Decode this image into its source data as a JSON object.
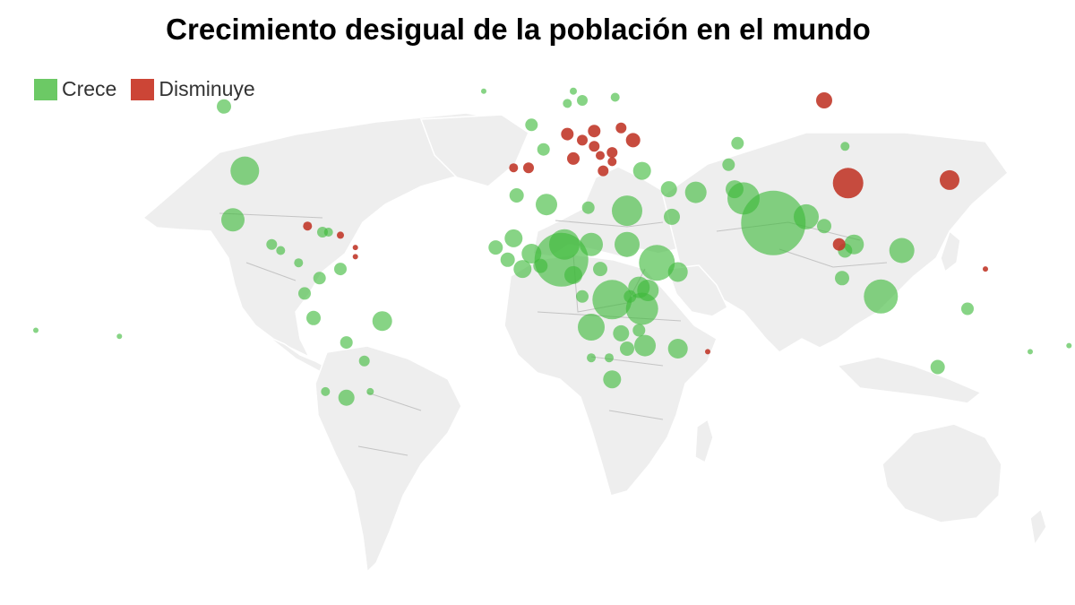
{
  "title": "Crecimiento desigual de la población en el mundo",
  "legend": [
    {
      "label": "Crece",
      "color": "#6cc965"
    },
    {
      "label": "Disminuye",
      "color": "#cc4536"
    }
  ],
  "colors": {
    "grow": "#3dba3a",
    "decline": "#c1382a",
    "land": "#eeeeee",
    "border": "#c4c4c4"
  },
  "chart_data": {
    "type": "scatter",
    "points": [
      {
        "lon": -98,
        "lat": 39,
        "r": 16,
        "s": "grow"
      },
      {
        "lon": -102,
        "lat": 23,
        "r": 13,
        "s": "grow"
      },
      {
        "lon": -105,
        "lat": 60,
        "r": 8,
        "s": "grow"
      },
      {
        "lon": -89,
        "lat": 15,
        "r": 6,
        "s": "grow"
      },
      {
        "lon": -86,
        "lat": 13,
        "r": 5,
        "s": "grow"
      },
      {
        "lon": -80,
        "lat": 9,
        "r": 5,
        "s": "grow"
      },
      {
        "lon": -73,
        "lat": 4,
        "r": 7,
        "s": "grow"
      },
      {
        "lon": -66,
        "lat": 7,
        "r": 7,
        "s": "grow"
      },
      {
        "lon": -78,
        "lat": -1,
        "r": 7,
        "s": "grow"
      },
      {
        "lon": -75,
        "lat": -9,
        "r": 8,
        "s": "grow"
      },
      {
        "lon": -52,
        "lat": -10,
        "r": 11,
        "s": "grow"
      },
      {
        "lon": -64,
        "lat": -17,
        "r": 7,
        "s": "grow"
      },
      {
        "lon": -58,
        "lat": -23,
        "r": 6,
        "s": "grow"
      },
      {
        "lon": -71,
        "lat": -33,
        "r": 5,
        "s": "grow"
      },
      {
        "lon": -64,
        "lat": -35,
        "r": 9,
        "s": "grow"
      },
      {
        "lon": -56,
        "lat": -33,
        "r": 4,
        "s": "grow"
      },
      {
        "lon": -77,
        "lat": 21,
        "r": 5,
        "s": "decline"
      },
      {
        "lon": -72,
        "lat": 19,
        "r": 6,
        "s": "grow"
      },
      {
        "lon": -70,
        "lat": 19,
        "r": 5,
        "s": "grow"
      },
      {
        "lon": -66,
        "lat": 18,
        "r": 4,
        "s": "decline"
      },
      {
        "lon": -61,
        "lat": 14,
        "r": 3,
        "s": "decline"
      },
      {
        "lon": -61,
        "lat": 11,
        "r": 3,
        "s": "decline"
      },
      {
        "lon": -3,
        "lat": 40,
        "r": 6,
        "s": "decline"
      },
      {
        "lon": -8,
        "lat": 40,
        "r": 5,
        "s": "decline"
      },
      {
        "lon": 2,
        "lat": 46,
        "r": 7,
        "s": "grow"
      },
      {
        "lon": -2,
        "lat": 54,
        "r": 7,
        "s": "grow"
      },
      {
        "lon": 10,
        "lat": 51,
        "r": 7,
        "s": "decline"
      },
      {
        "lon": 12,
        "lat": 43,
        "r": 7,
        "s": "decline"
      },
      {
        "lon": 19,
        "lat": 52,
        "r": 7,
        "s": "decline"
      },
      {
        "lon": 15,
        "lat": 49,
        "r": 6,
        "s": "decline"
      },
      {
        "lon": 19,
        "lat": 47,
        "r": 6,
        "s": "decline"
      },
      {
        "lon": 25,
        "lat": 45,
        "r": 6,
        "s": "decline"
      },
      {
        "lon": 32,
        "lat": 49,
        "r": 8,
        "s": "decline"
      },
      {
        "lon": 28,
        "lat": 53,
        "r": 6,
        "s": "decline"
      },
      {
        "lon": 25,
        "lat": 42,
        "r": 5,
        "s": "decline"
      },
      {
        "lon": 21,
        "lat": 44,
        "r": 5,
        "s": "decline"
      },
      {
        "lon": 22,
        "lat": 39,
        "r": 6,
        "s": "decline"
      },
      {
        "lon": 35,
        "lat": 39,
        "r": 10,
        "s": "grow"
      },
      {
        "lon": 15,
        "lat": 62,
        "r": 6,
        "s": "grow"
      },
      {
        "lon": 10,
        "lat": 61,
        "r": 5,
        "s": "grow"
      },
      {
        "lon": 26,
        "lat": 63,
        "r": 5,
        "s": "grow"
      },
      {
        "lon": 53,
        "lat": 32,
        "r": 12,
        "s": "grow"
      },
      {
        "lon": 44,
        "lat": 33,
        "r": 9,
        "s": "grow"
      },
      {
        "lon": 45,
        "lat": 24,
        "r": 9,
        "s": "grow"
      },
      {
        "lon": 66,
        "lat": 33,
        "r": 10,
        "s": "grow"
      },
      {
        "lon": 69,
        "lat": 30,
        "r": 18,
        "s": "grow"
      },
      {
        "lon": 79,
        "lat": 22,
        "r": 36,
        "s": "grow"
      },
      {
        "lon": 90,
        "lat": 24,
        "r": 14,
        "s": "grow"
      },
      {
        "lon": 67,
        "lat": 48,
        "r": 7,
        "s": "grow"
      },
      {
        "lon": 64,
        "lat": 41,
        "r": 7,
        "s": "grow"
      },
      {
        "lon": 104,
        "lat": 35,
        "r": 17,
        "s": "decline"
      },
      {
        "lon": 138,
        "lat": 36,
        "r": 11,
        "s": "decline"
      },
      {
        "lon": 96,
        "lat": 62,
        "r": 9,
        "s": "decline"
      },
      {
        "lon": 103,
        "lat": 47,
        "r": 5,
        "s": "grow"
      },
      {
        "lon": 96,
        "lat": 21,
        "r": 8,
        "s": "grow"
      },
      {
        "lon": 101,
        "lat": 15,
        "r": 7,
        "s": "decline"
      },
      {
        "lon": 106,
        "lat": 15,
        "r": 11,
        "s": "grow"
      },
      {
        "lon": 103,
        "lat": 13,
        "r": 8,
        "s": "grow"
      },
      {
        "lon": 122,
        "lat": 13,
        "r": 14,
        "s": "grow"
      },
      {
        "lon": 102,
        "lat": 4,
        "r": 8,
        "s": "grow"
      },
      {
        "lon": 115,
        "lat": -2,
        "r": 19,
        "s": "grow"
      },
      {
        "lon": 144,
        "lat": -6,
        "r": 7,
        "s": "grow"
      },
      {
        "lon": 134,
        "lat": -25,
        "r": 8,
        "s": "grow"
      },
      {
        "lon": 3,
        "lat": 28,
        "r": 12,
        "s": "grow"
      },
      {
        "lon": -7,
        "lat": 31,
        "r": 8,
        "s": "grow"
      },
      {
        "lon": 17,
        "lat": 27,
        "r": 7,
        "s": "grow"
      },
      {
        "lon": 30,
        "lat": 26,
        "r": 17,
        "s": "grow"
      },
      {
        "lon": 30,
        "lat": 15,
        "r": 14,
        "s": "grow"
      },
      {
        "lon": 40,
        "lat": 9,
        "r": 20,
        "s": "grow"
      },
      {
        "lon": 47,
        "lat": 6,
        "r": 11,
        "s": "grow"
      },
      {
        "lon": 8,
        "lat": 10,
        "r": 30,
        "s": "grow"
      },
      {
        "lon": 9,
        "lat": 15,
        "r": 17,
        "s": "grow"
      },
      {
        "lon": 18,
        "lat": 15,
        "r": 13,
        "s": "grow"
      },
      {
        "lon": -2,
        "lat": 12,
        "r": 11,
        "s": "grow"
      },
      {
        "lon": -8,
        "lat": 17,
        "r": 10,
        "s": "grow"
      },
      {
        "lon": -14,
        "lat": 14,
        "r": 8,
        "s": "grow"
      },
      {
        "lon": -10,
        "lat": 10,
        "r": 8,
        "s": "grow"
      },
      {
        "lon": -5,
        "lat": 7,
        "r": 10,
        "s": "grow"
      },
      {
        "lon": 1,
        "lat": 8,
        "r": 8,
        "s": "grow"
      },
      {
        "lon": 12,
        "lat": 5,
        "r": 10,
        "s": "grow"
      },
      {
        "lon": 21,
        "lat": 7,
        "r": 8,
        "s": "grow"
      },
      {
        "lon": 25,
        "lat": -3,
        "r": 22,
        "s": "grow"
      },
      {
        "lon": 34,
        "lat": 1,
        "r": 12,
        "s": "grow"
      },
      {
        "lon": 37,
        "lat": 0,
        "r": 12,
        "s": "grow"
      },
      {
        "lon": 35,
        "lat": -6,
        "r": 18,
        "s": "grow"
      },
      {
        "lon": 31,
        "lat": -2,
        "r": 7,
        "s": "grow"
      },
      {
        "lon": 15,
        "lat": -2,
        "r": 7,
        "s": "grow"
      },
      {
        "lon": 18,
        "lat": -12,
        "r": 15,
        "s": "grow"
      },
      {
        "lon": 28,
        "lat": -14,
        "r": 9,
        "s": "grow"
      },
      {
        "lon": 34,
        "lat": -13,
        "r": 7,
        "s": "grow"
      },
      {
        "lon": 36,
        "lat": -18,
        "r": 12,
        "s": "grow"
      },
      {
        "lon": 30,
        "lat": -19,
        "r": 8,
        "s": "grow"
      },
      {
        "lon": 47,
        "lat": -19,
        "r": 11,
        "s": "grow"
      },
      {
        "lon": 25,
        "lat": -29,
        "r": 10,
        "s": "grow"
      },
      {
        "lon": 18,
        "lat": -22,
        "r": 5,
        "s": "grow"
      },
      {
        "lon": 24,
        "lat": -22,
        "r": 5,
        "s": "grow"
      },
      {
        "lon": -168,
        "lat": -13,
        "r": 3,
        "s": "grow"
      },
      {
        "lon": -140,
        "lat": -15,
        "r": 3,
        "s": "grow"
      },
      {
        "lon": 165,
        "lat": -20,
        "r": 3,
        "s": "grow"
      },
      {
        "lon": 178,
        "lat": -18,
        "r": 3,
        "s": "grow"
      },
      {
        "lon": 57,
        "lat": -20,
        "r": 3,
        "s": "decline"
      },
      {
        "lon": 150,
        "lat": 7,
        "r": 3,
        "s": "decline"
      },
      {
        "lon": 12,
        "lat": 65,
        "r": 4,
        "s": "grow"
      },
      {
        "lon": -18,
        "lat": 65,
        "r": 3,
        "s": "grow"
      }
    ]
  }
}
